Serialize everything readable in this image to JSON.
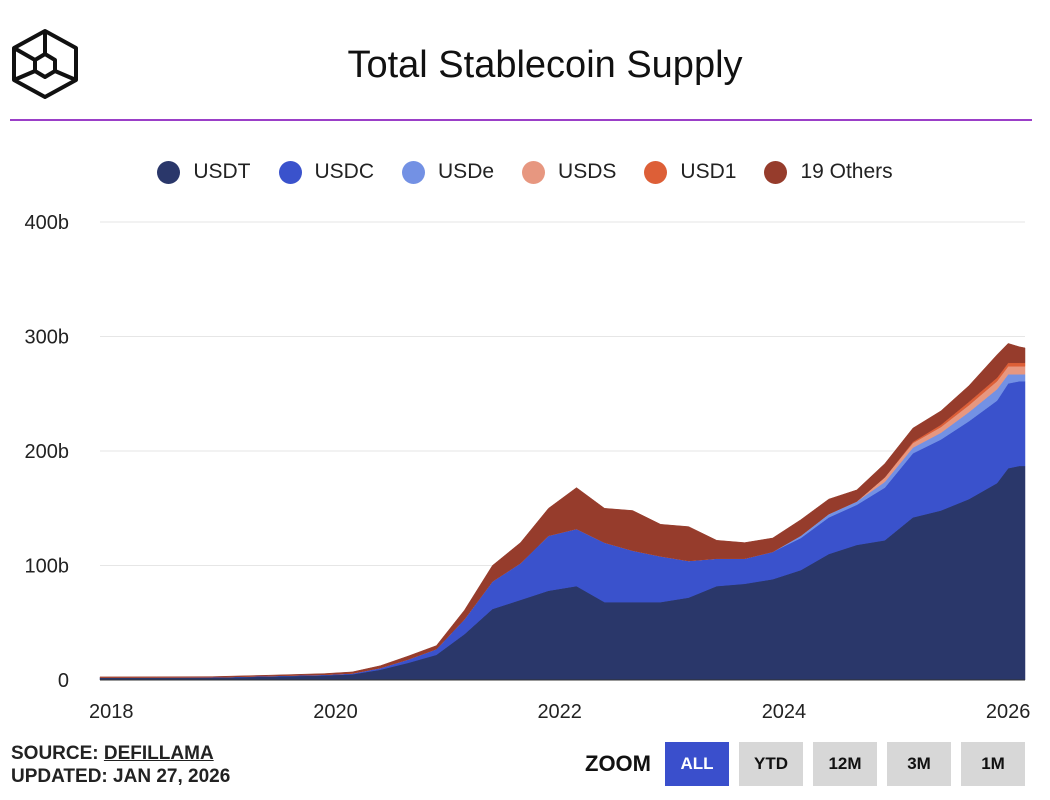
{
  "header": {
    "title": "Total Stablecoin Supply"
  },
  "footer": {
    "source_prefix": "SOURCE: ",
    "source_name": "DEFILLAMA",
    "updated": "UPDATED: JAN 27, 2026"
  },
  "zoom": {
    "label": "ZOOM",
    "buttons": [
      "ALL",
      "YTD",
      "12M",
      "3M",
      "1M"
    ],
    "active": "ALL"
  },
  "colors": {
    "accent": "#9b3fc8",
    "button_active": "#3a4fcc",
    "button_inactive": "#d7d7d7"
  },
  "chart_data": {
    "type": "area",
    "stacked": true,
    "title": "Total Stablecoin Supply",
    "xlabel": "",
    "ylabel": "",
    "xlim": [
      2018,
      2026.25
    ],
    "ylim": [
      0,
      400
    ],
    "y_ticks": [
      {
        "value": 0,
        "label": "0"
      },
      {
        "value": 100,
        "label": "100b"
      },
      {
        "value": 200,
        "label": "200b"
      },
      {
        "value": 300,
        "label": "300b"
      },
      {
        "value": 400,
        "label": "400b"
      }
    ],
    "x_ticks": [
      {
        "value": 2018.1,
        "label": "2018"
      },
      {
        "value": 2020.1,
        "label": "2020"
      },
      {
        "value": 2022.1,
        "label": "2022"
      },
      {
        "value": 2024.1,
        "label": "2024"
      },
      {
        "value": 2026.1,
        "label": "2026"
      }
    ],
    "grid": true,
    "legend_position": "top-center",
    "x": [
      2018.0,
      2018.5,
      2019.0,
      2019.5,
      2020.0,
      2020.25,
      2020.5,
      2020.75,
      2021.0,
      2021.25,
      2021.5,
      2021.75,
      2022.0,
      2022.25,
      2022.5,
      2022.75,
      2023.0,
      2023.25,
      2023.5,
      2023.75,
      2024.0,
      2024.25,
      2024.5,
      2024.75,
      2025.0,
      2025.25,
      2025.5,
      2025.75,
      2026.0,
      2026.1,
      2026.2,
      2026.25
    ],
    "series": [
      {
        "name": "USDT",
        "color": "#2a376a",
        "values": [
          2,
          2,
          2,
          3,
          4,
          5,
          9,
          15,
          22,
          40,
          62,
          70,
          78,
          82,
          68,
          68,
          68,
          72,
          82,
          84,
          88,
          96,
          110,
          118,
          122,
          142,
          148,
          158,
          172,
          185,
          187,
          187
        ]
      },
      {
        "name": "USDC",
        "color": "#3a52cc",
        "values": [
          0.2,
          0.3,
          0.4,
          0.5,
          0.6,
          0.8,
          1.5,
          3,
          5,
          13,
          24,
          32,
          48,
          50,
          52,
          45,
          40,
          32,
          24,
          22,
          24,
          28,
          32,
          35,
          46,
          56,
          62,
          68,
          72,
          74,
          74,
          74
        ]
      },
      {
        "name": "USDe",
        "color": "#7391e4",
        "values": [
          0,
          0,
          0,
          0,
          0,
          0,
          0,
          0,
          0,
          0,
          0,
          0,
          0,
          0,
          0,
          0,
          0,
          0,
          0,
          0,
          0,
          2,
          3,
          3,
          5,
          5,
          6,
          8,
          10,
          8,
          6,
          6
        ]
      },
      {
        "name": "USDS",
        "color": "#e79780",
        "values": [
          0,
          0,
          0,
          0,
          0,
          0,
          0,
          0,
          0,
          0,
          0,
          0,
          0,
          0,
          0,
          0,
          0,
          0,
          0,
          0,
          0,
          0,
          0,
          0,
          4,
          4,
          5,
          6,
          7,
          7,
          7,
          7
        ]
      },
      {
        "name": "USD1",
        "color": "#dd5f37",
        "values": [
          0,
          0,
          0,
          0,
          0,
          0,
          0,
          0,
          0,
          0,
          0,
          0,
          0,
          0,
          0,
          0,
          0,
          0,
          0,
          0,
          0,
          0,
          0,
          0,
          0,
          1,
          2,
          3,
          3,
          3,
          3,
          3
        ]
      },
      {
        "name": "19 Others",
        "color": "#963c2c",
        "values": [
          0.5,
          0.5,
          0.6,
          0.7,
          1,
          1.3,
          2,
          3,
          3,
          8,
          14,
          18,
          24,
          36,
          30,
          35,
          28,
          30,
          16,
          14,
          12,
          14,
          13,
          10,
          12,
          12,
          12,
          14,
          20,
          17,
          14,
          13
        ]
      }
    ]
  }
}
